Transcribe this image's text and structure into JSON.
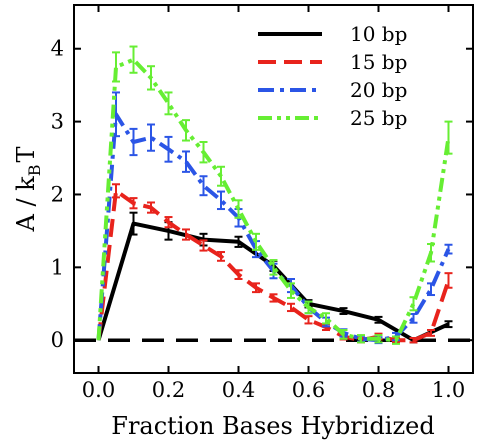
{
  "chart_data": {
    "type": "line",
    "xlabel": "Fraction Bases Hybridized",
    "ylabel": {
      "main": "A / k",
      "subscript": "B",
      "suffix": "T"
    },
    "xlim": [
      -0.07,
      1.07
    ],
    "ylim": [
      -0.45,
      4.6
    ],
    "xticks": [
      0.0,
      0.2,
      0.4,
      0.6,
      0.8,
      1.0
    ],
    "xtick_labels": [
      "0.0",
      "0.2",
      "0.4",
      "0.6",
      "0.8",
      "1.0"
    ],
    "yticks": [
      0,
      1,
      2,
      3,
      4
    ],
    "ytick_labels": [
      "0",
      "1",
      "2",
      "3",
      "4"
    ],
    "legend_position": "top-right",
    "reference_line": {
      "y": 0,
      "style": "dashed",
      "color": "#000000"
    },
    "series": [
      {
        "name": "10 bp",
        "color": "#000000",
        "dash": "solid",
        "x": [
          0.0,
          0.1,
          0.2,
          0.3,
          0.4,
          0.5,
          0.6,
          0.7,
          0.8,
          0.9,
          1.0
        ],
        "y": [
          0.0,
          1.6,
          1.5,
          1.38,
          1.35,
          1.02,
          0.5,
          0.4,
          0.28,
          0.0,
          0.22
        ],
        "err": [
          0.0,
          0.15,
          0.12,
          0.08,
          0.07,
          0.07,
          0.05,
          0.04,
          0.04,
          0.03,
          0.04
        ]
      },
      {
        "name": "15 bp",
        "color": "#e8231c",
        "dash": "long-dash",
        "x": [
          0.0,
          0.05,
          0.1,
          0.15,
          0.2,
          0.25,
          0.3,
          0.35,
          0.4,
          0.45,
          0.5,
          0.55,
          0.6,
          0.65,
          0.7,
          0.75,
          0.8,
          0.85,
          0.9,
          0.95,
          1.0
        ],
        "y": [
          0.0,
          2.05,
          1.88,
          1.82,
          1.62,
          1.45,
          1.3,
          1.15,
          0.9,
          0.72,
          0.58,
          0.45,
          0.28,
          0.18,
          0.05,
          0.0,
          0.05,
          0.0,
          0.0,
          0.1,
          0.82
        ],
        "err": [
          0.0,
          0.09,
          0.07,
          0.07,
          0.07,
          0.07,
          0.07,
          0.06,
          0.06,
          0.06,
          0.05,
          0.05,
          0.05,
          0.04,
          0.04,
          0.03,
          0.04,
          0.03,
          0.03,
          0.04,
          0.1
        ]
      },
      {
        "name": "20 bp",
        "color": "#2b55e6",
        "dash": "dash-dot",
        "x": [
          0.0,
          0.05,
          0.1,
          0.15,
          0.2,
          0.25,
          0.3,
          0.35,
          0.4,
          0.45,
          0.5,
          0.55,
          0.6,
          0.65,
          0.7,
          0.75,
          0.8,
          0.85,
          0.9,
          0.95,
          1.0
        ],
        "y": [
          0.0,
          3.1,
          2.72,
          2.78,
          2.62,
          2.45,
          2.12,
          1.92,
          1.68,
          1.25,
          0.95,
          0.75,
          0.45,
          0.25,
          0.1,
          0.02,
          0.0,
          0.05,
          0.3,
          0.7,
          1.25
        ],
        "err": [
          0.0,
          0.3,
          0.18,
          0.18,
          0.17,
          0.14,
          0.13,
          0.12,
          0.12,
          0.11,
          0.1,
          0.09,
          0.08,
          0.06,
          0.05,
          0.04,
          0.04,
          0.05,
          0.06,
          0.08,
          0.06
        ]
      },
      {
        "name": "25 bp",
        "color": "#66ee33",
        "dash": "dash-dot-dot",
        "x": [
          0.0,
          0.05,
          0.1,
          0.15,
          0.2,
          0.25,
          0.3,
          0.35,
          0.4,
          0.45,
          0.5,
          0.55,
          0.6,
          0.65,
          0.7,
          0.75,
          0.8,
          0.85,
          0.9,
          0.95,
          1.0
        ],
        "y": [
          0.0,
          3.75,
          3.85,
          3.6,
          3.25,
          2.88,
          2.58,
          2.25,
          1.8,
          1.35,
          1.0,
          0.68,
          0.45,
          0.3,
          0.08,
          0.02,
          0.02,
          0.0,
          0.5,
          1.2,
          2.78
        ],
        "err": [
          0.0,
          0.2,
          0.18,
          0.16,
          0.15,
          0.14,
          0.14,
          0.13,
          0.12,
          0.11,
          0.1,
          0.1,
          0.08,
          0.07,
          0.06,
          0.05,
          0.05,
          0.05,
          0.09,
          0.12,
          0.22
        ]
      }
    ]
  }
}
